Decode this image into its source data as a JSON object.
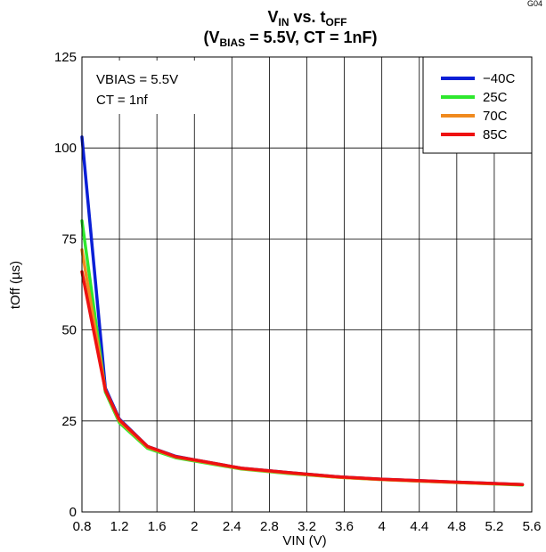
{
  "figure_code": "G04",
  "chart_data": {
    "type": "line",
    "title_line1": {
      "main": "V",
      "sub": "IN",
      "mid": " vs. t",
      "sub2": "OFF"
    },
    "title_line2": {
      "pre": "(V",
      "sub": "BIAS",
      "post": " = 5.5V, CT = 1nF)"
    },
    "xlabel": "VIN (V)",
    "ylabel": "tOff (µs)",
    "xlim": [
      0.8,
      5.6
    ],
    "ylim": [
      0,
      125
    ],
    "x_ticks": [
      0.8,
      1.2,
      1.6,
      2,
      2.4,
      2.8,
      3.2,
      3.6,
      4,
      4.4,
      4.8,
      5.2,
      5.6
    ],
    "x_tick_labels": [
      "0.8",
      "1.2",
      "1.6",
      "2",
      "2.4",
      "2.8",
      "3.2",
      "3.6",
      "4",
      "4.4",
      "4.8",
      "5.2",
      "5.6"
    ],
    "y_ticks": [
      0,
      25,
      50,
      75,
      100,
      125
    ],
    "y_tick_labels": [
      "0",
      "25",
      "50",
      "75",
      "100",
      "125"
    ],
    "grid": true,
    "annotations": [
      "VBIAS = 5.5V",
      "CT = 1nf"
    ],
    "legend_position": "top-right",
    "series": [
      {
        "name": "−40C",
        "color": "#0a1fd6",
        "x": [
          0.8,
          1.05,
          1.2,
          1.5,
          1.8,
          2.0,
          2.5,
          3.0,
          3.5,
          4.0,
          4.5,
          5.0,
          5.5
        ],
        "y": [
          103,
          34,
          25.5,
          18,
          15.3,
          14.3,
          12,
          10.8,
          9.7,
          9,
          8.5,
          8,
          7.5
        ]
      },
      {
        "name": "25C",
        "color": "#2ee82e",
        "x": [
          0.8,
          1.05,
          1.2,
          1.5,
          1.8,
          2.0,
          2.5,
          3.0,
          3.5,
          4.0,
          4.5,
          5.0,
          5.5
        ],
        "y": [
          80,
          33,
          24.5,
          17.5,
          14.9,
          14,
          11.8,
          10.6,
          9.6,
          8.9,
          8.4,
          7.9,
          7.4
        ]
      },
      {
        "name": "70C",
        "color": "#f08a1e",
        "x": [
          0.8,
          1.05,
          1.2,
          1.5,
          1.8,
          2.0,
          2.5,
          3.0,
          3.5,
          4.0,
          4.5,
          5.0,
          5.5
        ],
        "y": [
          72,
          33.5,
          25,
          17.8,
          15.1,
          14.2,
          11.9,
          10.7,
          9.6,
          8.9,
          8.4,
          7.9,
          7.5
        ]
      },
      {
        "name": "85C",
        "color": "#ee1111",
        "x": [
          0.8,
          1.05,
          1.2,
          1.5,
          1.8,
          2.0,
          2.5,
          3.0,
          3.5,
          4.0,
          4.5,
          5.0,
          5.5
        ],
        "y": [
          66,
          33.5,
          25.3,
          18,
          15.2,
          14.3,
          12,
          10.8,
          9.7,
          9,
          8.5,
          8,
          7.5
        ]
      }
    ]
  }
}
